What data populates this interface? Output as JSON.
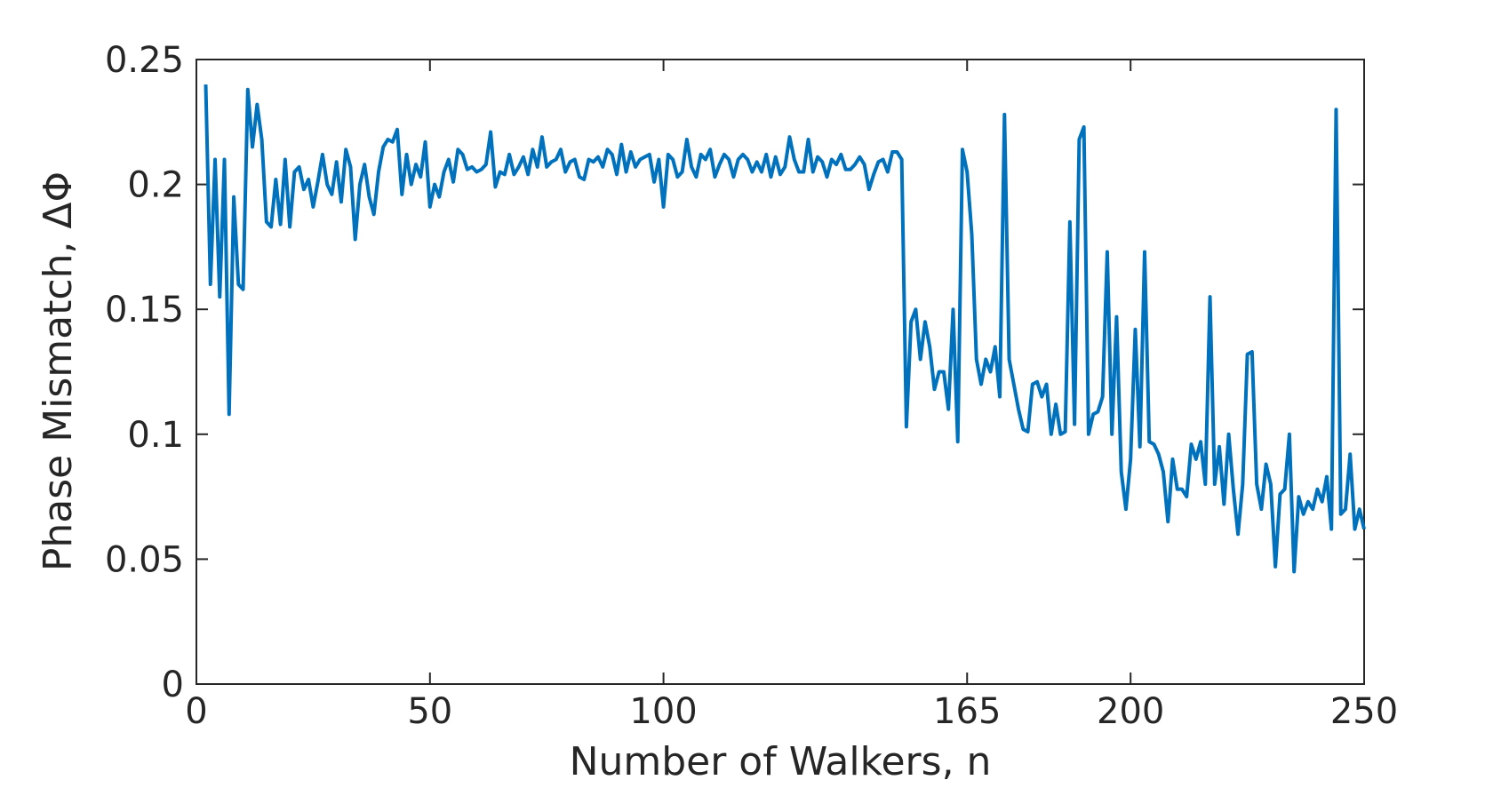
{
  "chart_data": {
    "type": "line",
    "xlabel": "Number of Walkers, n",
    "ylabel": "Phase Mismatch, ΔΦ",
    "xlim": [
      0,
      250
    ],
    "ylim": [
      0,
      0.25
    ],
    "xticks": [
      0,
      50,
      100,
      165,
      200,
      250
    ],
    "yticks": [
      0,
      0.05,
      0.1,
      0.15,
      0.2,
      0.25
    ],
    "color": "#0072bd",
    "x": [
      2,
      3,
      4,
      5,
      6,
      7,
      8,
      9,
      10,
      11,
      12,
      13,
      14,
      15,
      16,
      17,
      18,
      19,
      20,
      21,
      22,
      23,
      24,
      25,
      26,
      27,
      28,
      29,
      30,
      31,
      32,
      33,
      34,
      35,
      36,
      37,
      38,
      39,
      40,
      41,
      42,
      43,
      44,
      45,
      46,
      47,
      48,
      49,
      50,
      51,
      52,
      53,
      54,
      55,
      56,
      57,
      58,
      59,
      60,
      61,
      62,
      63,
      64,
      65,
      66,
      67,
      68,
      69,
      70,
      71,
      72,
      73,
      74,
      75,
      76,
      77,
      78,
      79,
      80,
      81,
      82,
      83,
      84,
      85,
      86,
      87,
      88,
      89,
      90,
      91,
      92,
      93,
      94,
      95,
      96,
      97,
      98,
      99,
      100,
      101,
      102,
      103,
      104,
      105,
      106,
      107,
      108,
      109,
      110,
      111,
      112,
      113,
      114,
      115,
      116,
      117,
      118,
      119,
      120,
      121,
      122,
      123,
      124,
      125,
      126,
      127,
      128,
      129,
      130,
      131,
      132,
      133,
      134,
      135,
      136,
      137,
      138,
      139,
      140,
      141,
      142,
      143,
      144,
      145,
      146,
      147,
      148,
      149,
      150,
      151,
      152,
      153,
      154,
      155,
      156,
      157,
      158,
      159,
      160,
      161,
      162,
      163,
      164,
      165,
      166,
      167,
      168,
      169,
      170,
      171,
      172,
      173,
      174,
      175,
      176,
      177,
      178,
      179,
      180,
      181,
      182,
      183,
      184,
      185,
      186,
      187,
      188,
      189,
      190,
      191,
      192,
      193,
      194,
      195,
      196,
      197,
      198,
      199,
      200,
      201,
      202,
      203,
      204,
      205,
      206,
      207,
      208,
      209,
      210,
      211,
      212,
      213,
      214,
      215,
      216,
      217,
      218,
      219,
      220,
      221,
      222,
      223,
      224,
      225,
      226,
      227,
      228,
      229,
      230,
      231,
      232,
      233,
      234,
      235,
      236,
      237,
      238,
      239,
      240,
      241,
      242,
      243,
      244,
      245,
      246,
      247,
      248,
      249,
      250
    ],
    "values": [
      0.24,
      0.16,
      0.21,
      0.155,
      0.21,
      0.108,
      0.195,
      0.16,
      0.158,
      0.238,
      0.215,
      0.232,
      0.218,
      0.185,
      0.183,
      0.202,
      0.184,
      0.21,
      0.183,
      0.205,
      0.207,
      0.198,
      0.202,
      0.191,
      0.201,
      0.212,
      0.2,
      0.196,
      0.209,
      0.193,
      0.214,
      0.207,
      0.178,
      0.2,
      0.208,
      0.195,
      0.188,
      0.205,
      0.215,
      0.218,
      0.217,
      0.222,
      0.196,
      0.212,
      0.2,
      0.208,
      0.203,
      0.217,
      0.191,
      0.2,
      0.195,
      0.205,
      0.21,
      0.201,
      0.214,
      0.212,
      0.206,
      0.207,
      0.205,
      0.206,
      0.208,
      0.221,
      0.199,
      0.205,
      0.204,
      0.212,
      0.204,
      0.207,
      0.211,
      0.204,
      0.214,
      0.207,
      0.219,
      0.207,
      0.209,
      0.21,
      0.214,
      0.205,
      0.209,
      0.21,
      0.203,
      0.202,
      0.21,
      0.209,
      0.211,
      0.207,
      0.214,
      0.212,
      0.204,
      0.216,
      0.205,
      0.213,
      0.207,
      0.21,
      0.211,
      0.212,
      0.201,
      0.21,
      0.191,
      0.212,
      0.21,
      0.203,
      0.205,
      0.218,
      0.207,
      0.203,
      0.212,
      0.21,
      0.214,
      0.203,
      0.208,
      0.212,
      0.21,
      0.203,
      0.21,
      0.212,
      0.21,
      0.205,
      0.209,
      0.205,
      0.212,
      0.203,
      0.211,
      0.204,
      0.207,
      0.219,
      0.21,
      0.205,
      0.205,
      0.218,
      0.205,
      0.211,
      0.209,
      0.203,
      0.21,
      0.208,
      0.212,
      0.206,
      0.206,
      0.208,
      0.211,
      0.208,
      0.198,
      0.204,
      0.209,
      0.21,
      0.205,
      0.213,
      0.213,
      0.21,
      0.103,
      0.145,
      0.15,
      0.13,
      0.145,
      0.135,
      0.118,
      0.125,
      0.125,
      0.11,
      0.15,
      0.097,
      0.214,
      0.205,
      0.18,
      0.13,
      0.12,
      0.13,
      0.125,
      0.135,
      0.115,
      0.228,
      0.13,
      0.12,
      0.11,
      0.102,
      0.101,
      0.12,
      0.121,
      0.115,
      0.12,
      0.1,
      0.112,
      0.1,
      0.101,
      0.185,
      0.104,
      0.218,
      0.223,
      0.1,
      0.108,
      0.109,
      0.115,
      0.173,
      0.1,
      0.147,
      0.085,
      0.07,
      0.09,
      0.142,
      0.095,
      0.173,
      0.097,
      0.096,
      0.092,
      0.085,
      0.065,
      0.09,
      0.078,
      0.078,
      0.075,
      0.096,
      0.09,
      0.097,
      0.08,
      0.155,
      0.08,
      0.095,
      0.072,
      0.1,
      0.078,
      0.06,
      0.08,
      0.132,
      0.133,
      0.08,
      0.07,
      0.088,
      0.08,
      0.047,
      0.076,
      0.078,
      0.1,
      0.045,
      0.075,
      0.068,
      0.073,
      0.07,
      0.078,
      0.073,
      0.083,
      0.062,
      0.23,
      0.068,
      0.07,
      0.092,
      0.062,
      0.07,
      0.062
    ]
  }
}
